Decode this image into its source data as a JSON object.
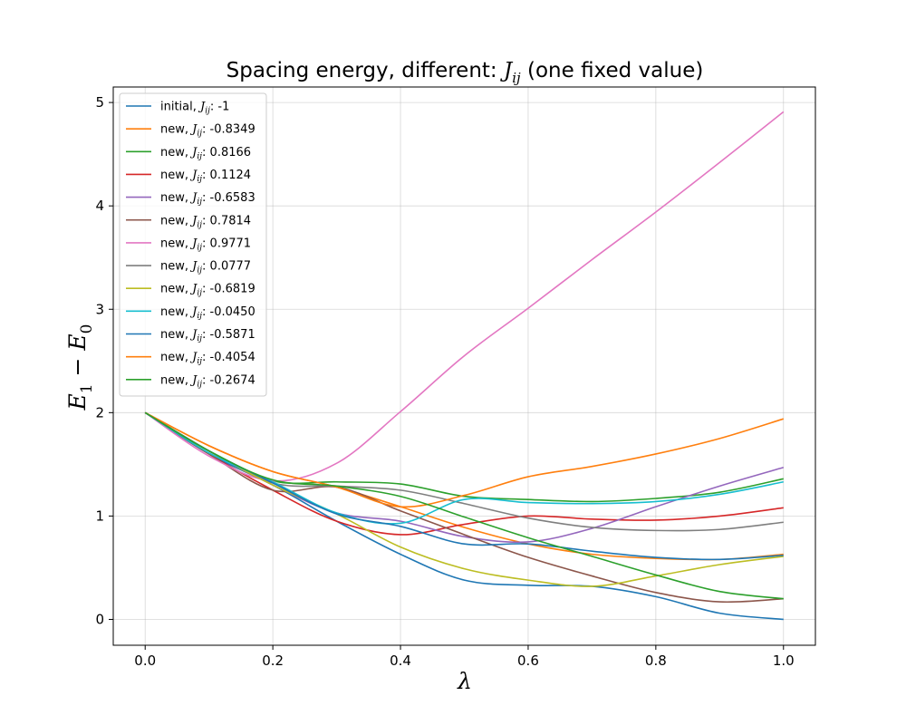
{
  "chart_data": {
    "type": "line",
    "title": {
      "prefix": "Spacing energy, different: ",
      "symbol": "J",
      "sub": "ij",
      "suffix": " (one fixed value)"
    },
    "xlabel": "λ",
    "ylabel": {
      "a": "E",
      "a_sub": "1",
      "minus": " − ",
      "b": "E",
      "b_sub": "0"
    },
    "xlim": [
      -0.05,
      1.05
    ],
    "ylim": [
      -0.25,
      5.15
    ],
    "xticks": [
      0.0,
      0.2,
      0.4,
      0.6,
      0.8,
      1.0
    ],
    "xtick_labels": [
      "0.0",
      "0.2",
      "0.4",
      "0.6",
      "0.8",
      "1.0"
    ],
    "yticks": [
      0,
      1,
      2,
      3,
      4,
      5
    ],
    "ytick_labels": [
      "0",
      "1",
      "2",
      "3",
      "4",
      "5"
    ],
    "grid": true,
    "legend_position": "upper-left",
    "x": [
      0.0,
      0.1,
      0.2,
      0.3,
      0.4,
      0.5,
      0.6,
      0.7,
      0.8,
      0.9,
      1.0
    ],
    "series": [
      {
        "name_prefix": "initial, ",
        "name_value": ": -1",
        "color": "#1f77b4",
        "values": [
          2.0,
          1.6,
          1.3,
          0.95,
          0.63,
          0.38,
          0.33,
          0.32,
          0.22,
          0.06,
          0.0
        ]
      },
      {
        "name_prefix": "new, ",
        "name_value": ": -0.8349",
        "color": "#ff7f0e",
        "values": [
          2.0,
          1.68,
          1.43,
          1.28,
          1.09,
          0.89,
          0.73,
          0.63,
          0.59,
          0.58,
          0.63
        ]
      },
      {
        "name_prefix": "new, ",
        "name_value": ": 0.8166",
        "color": "#2ca02c",
        "values": [
          2.0,
          1.63,
          1.34,
          1.33,
          1.31,
          1.19,
          1.16,
          1.14,
          1.17,
          1.23,
          1.36
        ]
      },
      {
        "name_prefix": "new, ",
        "name_value": ": 0.1124",
        "color": "#d62728",
        "values": [
          2.0,
          1.6,
          1.25,
          0.95,
          0.82,
          0.92,
          1.0,
          0.97,
          0.96,
          1.0,
          1.08
        ]
      },
      {
        "name_prefix": "new, ",
        "name_value": ": -0.6583",
        "color": "#9467bd",
        "values": [
          2.0,
          1.63,
          1.3,
          1.03,
          0.95,
          0.8,
          0.75,
          0.88,
          1.09,
          1.29,
          1.47
        ]
      },
      {
        "name_prefix": "new, ",
        "name_value": ": 0.7814",
        "color": "#8c564b",
        "values": [
          2.0,
          1.6,
          1.25,
          1.28,
          1.05,
          0.82,
          0.6,
          0.42,
          0.26,
          0.17,
          0.2
        ]
      },
      {
        "name_prefix": "new, ",
        "name_value": ": 0.9771",
        "color": "#e377c2",
        "values": [
          2.0,
          1.58,
          1.34,
          1.51,
          2.01,
          2.55,
          3.01,
          3.48,
          3.94,
          4.42,
          4.91
        ]
      },
      {
        "name_prefix": "new, ",
        "name_value": ": 0.0777",
        "color": "#7f7f7f",
        "values": [
          2.0,
          1.63,
          1.32,
          1.29,
          1.25,
          1.12,
          0.98,
          0.89,
          0.86,
          0.87,
          0.94
        ]
      },
      {
        "name_prefix": "new, ",
        "name_value": ": -0.6819",
        "color": "#bcbd22",
        "values": [
          2.0,
          1.63,
          1.3,
          1.02,
          0.7,
          0.49,
          0.38,
          0.32,
          0.42,
          0.53,
          0.61
        ]
      },
      {
        "name_prefix": "new, ",
        "name_value": ": -0.0450",
        "color": "#17becf",
        "values": [
          2.0,
          1.61,
          1.33,
          1.03,
          0.93,
          1.16,
          1.13,
          1.12,
          1.14,
          1.21,
          1.33
        ]
      },
      {
        "name_prefix": "new, ",
        "name_value": ": -0.5871",
        "color": "#1f77b4",
        "values": [
          2.0,
          1.63,
          1.32,
          1.02,
          0.9,
          0.73,
          0.73,
          0.66,
          0.6,
          0.58,
          0.62
        ]
      },
      {
        "name_prefix": "new, ",
        "name_value": ": -0.4054",
        "color": "#ff7f0e",
        "values": [
          2.0,
          1.68,
          1.43,
          1.28,
          1.09,
          1.2,
          1.38,
          1.48,
          1.6,
          1.75,
          1.94
        ]
      },
      {
        "name_prefix": "new, ",
        "name_value": ": -0.2674",
        "color": "#2ca02c",
        "values": [
          2.0,
          1.63,
          1.35,
          1.29,
          1.19,
          0.99,
          0.79,
          0.61,
          0.43,
          0.27,
          0.2
        ]
      }
    ]
  }
}
